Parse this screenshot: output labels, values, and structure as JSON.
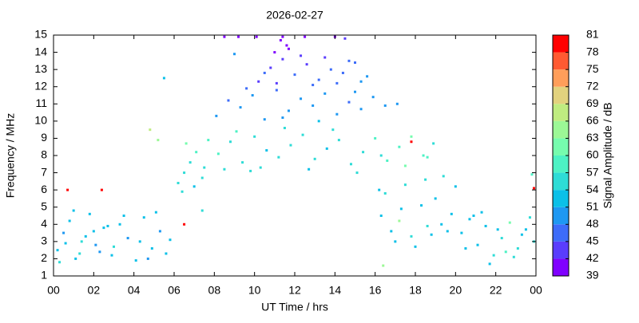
{
  "chart_data": {
    "type": "scatter",
    "title": "2026-02-27",
    "xlabel": "UT Time / hrs",
    "ylabel": "Frequency / MHz",
    "xlim": [
      0,
      24
    ],
    "xticks": [
      {
        "value": 0,
        "label": "00"
      },
      {
        "value": 2,
        "label": "02"
      },
      {
        "value": 4,
        "label": "04"
      },
      {
        "value": 6,
        "label": "06"
      },
      {
        "value": 8,
        "label": "08"
      },
      10,
      12,
      14,
      16,
      18,
      20,
      22,
      {
        "value": 24,
        "label": "00"
      }
    ],
    "ylim": [
      1,
      15
    ],
    "yticks": [
      1,
      2,
      3,
      4,
      5,
      6,
      7,
      8,
      9,
      10,
      11,
      12,
      13,
      14,
      15
    ],
    "colorbar": {
      "label": "Signal Amplitude / dB",
      "lim": [
        39,
        81
      ],
      "ticks": [
        39,
        42,
        45,
        48,
        51,
        54,
        57,
        60,
        63,
        66,
        69,
        72,
        75,
        78,
        81
      ],
      "colors": [
        "#8000ff",
        "#5a3dfd",
        "#3d6cf9",
        "#1e98f2",
        "#0bc0e8",
        "#2edcd6",
        "#4df2c4",
        "#76fcae",
        "#9cf896",
        "#bfec80",
        "#e2d27e",
        "#ff9e5a",
        "#ff5a32",
        "#ff0000"
      ]
    },
    "x": [
      0.2,
      0.5,
      0.8,
      1.1,
      1.4,
      1.8,
      2.1,
      2.5,
      2.9,
      3.3,
      3.7,
      4.1,
      4.5,
      4.9,
      5.3,
      5.6,
      0.3,
      1.0,
      1.6,
      2.3,
      2.7,
      3.0,
      3.5,
      4.3,
      4.7,
      5.1,
      5.8,
      0.6,
      1.3,
      2.0,
      6.2,
      6.5,
      6.8,
      7.1,
      7.4,
      7.7,
      6.4,
      7.0,
      7.5,
      6.6,
      8.2,
      8.8,
      9.4,
      10.0,
      10.6,
      11.2,
      11.8,
      12.4,
      13.0,
      13.6,
      14.2,
      14.8,
      15.4,
      16.0,
      16.6,
      17.2,
      17.8,
      18.4,
      18.9,
      9.1,
      10.3,
      11.5,
      12.7,
      13.9,
      15.1,
      16.3,
      17.5,
      18.6,
      8.5,
      9.8,
      8.1,
      8.7,
      9.3,
      9.9,
      10.5,
      11.1,
      11.7,
      12.3,
      12.9,
      13.5,
      14.1,
      14.7,
      15.3,
      15.9,
      16.5,
      17.1,
      9.6,
      11.4,
      13.2,
      15.0,
      10.2,
      10.8,
      11.4,
      12.0,
      12.6,
      13.2,
      13.8,
      14.4,
      15.0,
      15.6,
      10.5,
      11.1,
      11.7,
      12.3,
      12.9,
      13.5,
      14.1,
      14.7,
      15.3,
      11.0,
      8.5,
      9.2,
      10.1,
      11.3,
      11.6,
      12.5,
      14.0,
      14.5,
      9.0,
      11.4,
      16.3,
      16.8,
      17.3,
      17.8,
      18.3,
      18.8,
      19.3,
      16.5,
      17.5,
      18.5,
      19.4,
      19.8,
      17.0,
      18.0,
      19.0,
      16.2,
      18.6,
      17.2,
      19.6,
      20.0,
      20.3,
      20.7,
      21.1,
      21.5,
      21.9,
      22.3,
      22.7,
      23.1,
      23.5,
      23.9,
      20.5,
      21.3,
      22.1,
      22.9,
      23.7,
      21.7,
      22.5,
      23.3,
      20.9,
      23.8,
      0.7,
      2.4,
      4.8,
      5.2,
      6.5,
      7.4,
      17.8,
      23.9,
      16.4,
      5.5
    ],
    "y": [
      2.5,
      3.5,
      4.2,
      2.0,
      3.0,
      4.6,
      2.8,
      3.8,
      2.2,
      4.0,
      3.2,
      1.9,
      4.4,
      2.6,
      3.6,
      2.3,
      1.8,
      4.8,
      3.3,
      2.4,
      3.9,
      2.7,
      4.5,
      3.0,
      2.0,
      4.7,
      3.1,
      2.9,
      2.3,
      3.6,
      6.4,
      7.0,
      7.6,
      8.2,
      6.7,
      8.9,
      5.9,
      6.2,
      7.3,
      8.7,
      8.1,
      8.8,
      7.6,
      9.1,
      8.3,
      7.9,
      8.6,
      9.2,
      7.8,
      8.4,
      8.9,
      7.5,
      8.2,
      9.0,
      7.7,
      8.5,
      9.1,
      8.0,
      8.7,
      9.4,
      7.3,
      9.6,
      7.2,
      9.5,
      7.0,
      8.0,
      7.4,
      7.9,
      7.2,
      7.1,
      10.3,
      11.2,
      10.8,
      11.5,
      10.1,
      11.8,
      10.6,
      11.3,
      10.9,
      11.6,
      10.4,
      11.1,
      10.7,
      11.4,
      10.9,
      11.0,
      11.9,
      10.2,
      10.0,
      11.7,
      12.3,
      13.1,
      13.6,
      12.7,
      13.3,
      12.4,
      13.0,
      12.8,
      13.4,
      12.6,
      12.8,
      12.2,
      14.2,
      13.8,
      12.1,
      13.7,
      12.2,
      13.5,
      12.3,
      14.0,
      14.9,
      14.9,
      14.9,
      14.7,
      14.4,
      14.9,
      14.9,
      14.8,
      13.9,
      14.9,
      4.5,
      3.6,
      4.9,
      3.3,
      5.1,
      3.4,
      4.0,
      5.8,
      6.3,
      6.6,
      6.8,
      4.6,
      3.0,
      2.7,
      5.5,
      6.0,
      3.9,
      4.2,
      3.6,
      6.2,
      3.5,
      4.3,
      2.8,
      3.9,
      2.2,
      3.2,
      4.1,
      2.6,
      3.7,
      3.0,
      2.6,
      4.7,
      3.7,
      2.1,
      4.4,
      1.7,
      2.4,
      3.4,
      4.5,
      6.9,
      6.0,
      6.0,
      9.5,
      8.9,
      4.0,
      4.8,
      8.8,
      6.1,
      1.6,
      12.5
    ],
    "values": [
      52,
      50,
      53,
      51,
      54,
      52,
      49,
      53,
      51,
      52,
      50,
      53,
      52,
      51,
      49,
      53,
      54,
      51,
      52,
      50,
      52,
      55,
      51,
      53,
      50,
      52,
      51,
      53,
      56,
      52,
      54,
      56,
      55,
      57,
      54,
      59,
      55,
      53,
      56,
      60,
      57,
      56,
      55,
      54,
      53,
      55,
      56,
      54,
      55,
      53,
      56,
      54,
      55,
      57,
      58,
      59,
      60,
      57,
      55,
      57,
      54,
      55,
      53,
      54,
      56,
      55,
      61,
      58,
      56,
      54,
      48,
      47,
      49,
      48,
      50,
      47,
      49,
      48,
      50,
      49,
      48,
      47,
      49,
      48,
      50,
      48,
      47,
      49,
      51,
      48,
      44,
      43,
      42,
      45,
      44,
      46,
      45,
      47,
      46,
      48,
      45,
      44,
      41,
      43,
      46,
      44,
      47,
      45,
      48,
      41,
      40,
      41,
      40,
      39,
      40,
      41,
      40,
      42,
      50,
      39,
      53,
      52,
      51,
      54,
      52,
      53,
      51,
      54,
      55,
      54,
      55,
      53,
      52,
      51,
      52,
      53,
      54,
      63,
      52,
      53,
      52,
      51,
      53,
      52,
      55,
      54,
      60,
      56,
      53,
      55,
      51,
      53,
      52,
      54,
      55,
      52,
      58,
      53,
      51,
      58,
      81,
      81,
      66,
      64,
      79,
      55,
      80,
      81,
      63,
      51
    ]
  }
}
